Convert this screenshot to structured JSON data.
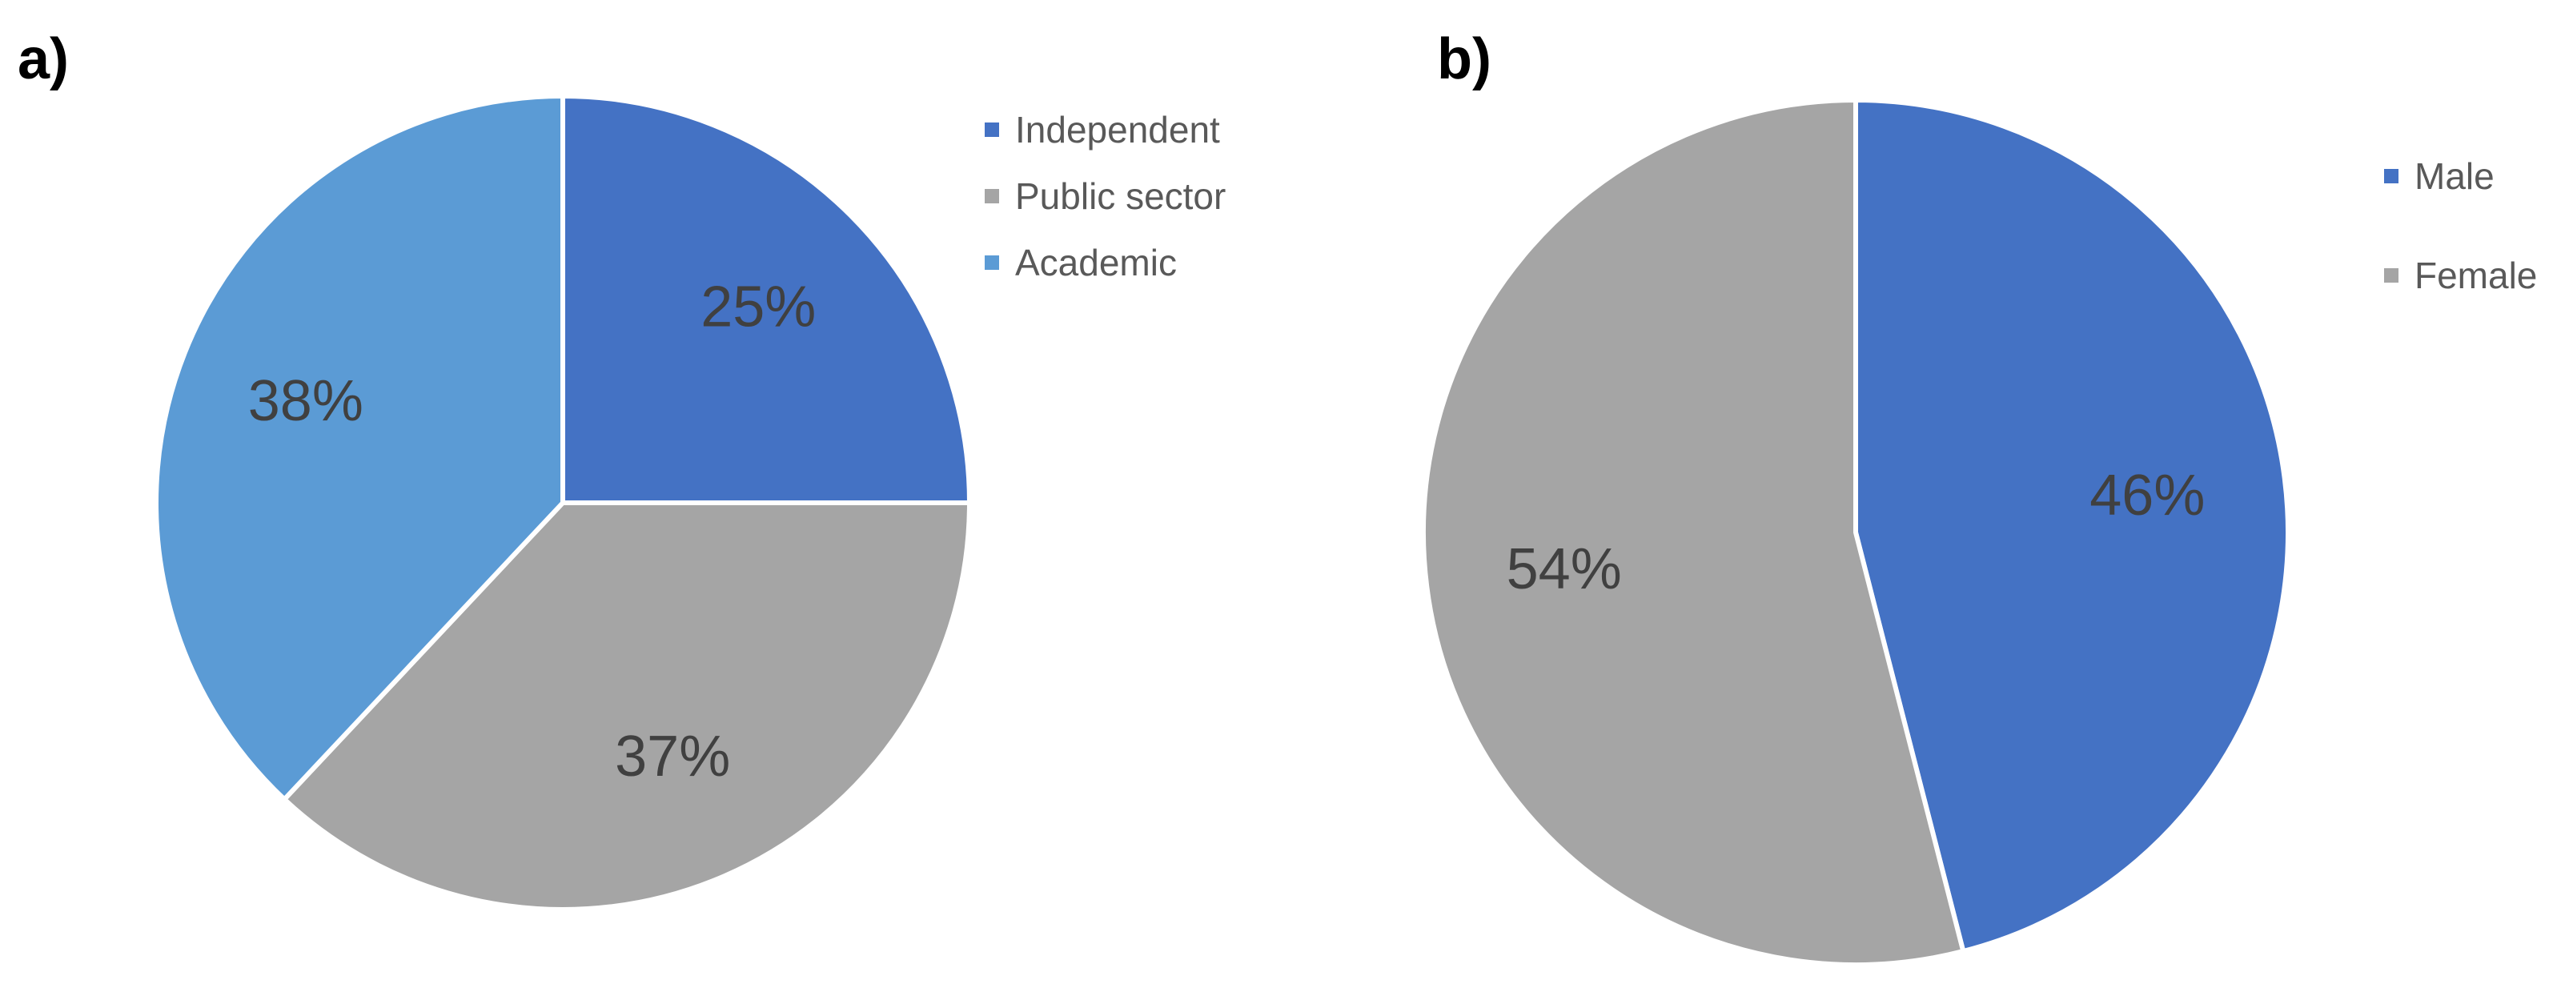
{
  "chart_data": [
    {
      "type": "pie",
      "panel_label": "a)",
      "categories": [
        "Independent",
        "Public sector",
        "Academic"
      ],
      "values": [
        25,
        37,
        38
      ],
      "data_labels": [
        "25%",
        "37%",
        "38%"
      ],
      "colors": [
        "#4472C4",
        "#A5A5A5",
        "#5B9BD5"
      ],
      "legend": {
        "entries": [
          "Independent",
          "Public sector",
          "Academic"
        ],
        "placement": "top-right"
      }
    },
    {
      "type": "pie",
      "panel_label": "b)",
      "categories": [
        "Male",
        "Female"
      ],
      "values": [
        46,
        54
      ],
      "data_labels": [
        "46%",
        "54%"
      ],
      "colors": [
        "#4472C4",
        "#A5A5A5"
      ],
      "legend": {
        "entries": [
          "Male",
          "Female"
        ],
        "placement": "top-right"
      }
    }
  ]
}
